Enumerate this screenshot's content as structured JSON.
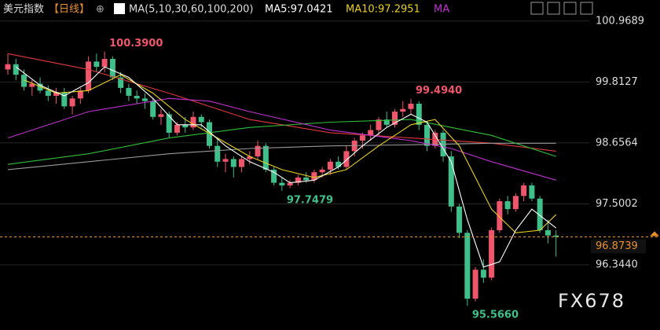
{
  "chart_data": {
    "type": "candlestick",
    "title": "美元指数",
    "period": "【日线】",
    "ma_label": "MA(5,10,30,60,100,200)",
    "ma5_label": "MA5:97.0421",
    "ma10_label": "MA10:97.2951",
    "ma_more": "MA",
    "watermark": "FX678",
    "up_color": "#f0566b",
    "down_color": "#3fbf8a",
    "ylim": [
      95.33,
      101.1
    ],
    "yticks": [
      {
        "value": 100.9689,
        "label": "100.9689"
      },
      {
        "value": 99.8127,
        "label": "99.8127"
      },
      {
        "value": 98.6564,
        "label": "98.6564"
      },
      {
        "value": 97.5002,
        "label": "97.5002"
      },
      {
        "value": 96.344,
        "label": "96.3440"
      }
    ],
    "grid": true,
    "last_price": {
      "value": 96.8739,
      "label": "96.8739"
    },
    "annotations": [
      {
        "value": 100.39,
        "label": "100.3900",
        "kind": "high",
        "color": "#f0566b"
      },
      {
        "value": 99.494,
        "label": "99.4940",
        "kind": "high",
        "color": "#f0566b"
      },
      {
        "value": 97.7479,
        "label": "97.7479",
        "kind": "low",
        "color": "#3fbf8a"
      },
      {
        "value": 95.566,
        "label": "95.5660",
        "kind": "low",
        "color": "#3fbf8a"
      }
    ],
    "open": [
      100.05,
      100.15,
      99.95,
      99.72,
      99.78,
      99.65,
      99.55,
      99.62,
      99.35,
      99.5,
      99.65,
      100.2,
      100.1,
      100.25,
      99.9,
      99.7,
      99.55,
      99.5,
      99.45,
      99.15,
      99.2,
      98.85,
      99.0,
      98.95,
      99.15,
      99.05,
      98.6,
      98.3,
      98.35,
      98.2,
      98.35,
      98.4,
      98.6,
      98.15,
      97.9,
      97.85,
      97.9,
      98.0,
      97.95,
      98.1,
      98.15,
      98.3,
      98.2,
      98.5,
      98.7,
      98.8,
      98.9,
      99.1,
      99.0,
      99.25,
      99.3,
      99.4,
      99.0,
      98.6,
      98.85,
      98.4,
      97.45,
      96.95,
      95.7,
      96.25,
      96.1,
      97.0,
      97.55,
      97.4,
      97.65,
      97.85,
      97.6,
      97.0,
      96.9
    ],
    "high": [
      100.35,
      100.25,
      100.05,
      99.85,
      99.9,
      99.75,
      99.7,
      99.7,
      99.55,
      99.7,
      100.3,
      100.35,
      100.39,
      100.3,
      100.0,
      99.78,
      99.65,
      99.6,
      99.5,
      99.3,
      99.25,
      99.05,
      99.15,
      99.25,
      99.2,
      99.1,
      98.75,
      98.45,
      98.4,
      98.4,
      98.5,
      98.7,
      98.65,
      98.2,
      98.0,
      97.95,
      98.05,
      98.1,
      98.15,
      98.2,
      98.35,
      98.4,
      98.6,
      98.75,
      98.85,
      99.0,
      99.15,
      99.25,
      99.3,
      99.45,
      99.494,
      99.45,
      99.05,
      98.9,
      98.9,
      98.5,
      97.5,
      97.0,
      96.3,
      96.45,
      97.05,
      97.6,
      97.65,
      97.7,
      97.9,
      97.9,
      97.65,
      97.2,
      97.0
    ],
    "low": [
      99.95,
      99.85,
      99.65,
      99.55,
      99.6,
      99.45,
      99.4,
      99.3,
      99.2,
      99.4,
      99.6,
      100.0,
      100.0,
      99.85,
      99.6,
      99.45,
      99.4,
      99.3,
      99.1,
      99.0,
      98.75,
      98.8,
      98.85,
      98.9,
      98.95,
      98.55,
      98.2,
      98.1,
      98.0,
      98.1,
      98.25,
      98.35,
      98.1,
      97.85,
      97.7479,
      97.8,
      97.85,
      97.9,
      97.9,
      98.0,
      98.05,
      98.15,
      98.15,
      98.4,
      98.55,
      98.7,
      98.8,
      98.95,
      98.95,
      99.15,
      99.2,
      98.9,
      98.5,
      98.55,
      98.3,
      97.35,
      96.85,
      95.566,
      95.65,
      96.0,
      96.05,
      96.95,
      97.3,
      97.35,
      97.55,
      97.55,
      96.95,
      96.75,
      96.5
    ],
    "close": [
      100.15,
      99.95,
      99.72,
      99.78,
      99.65,
      99.55,
      99.62,
      99.35,
      99.5,
      99.65,
      100.2,
      100.1,
      100.25,
      99.9,
      99.7,
      99.55,
      99.5,
      99.45,
      99.15,
      99.2,
      98.85,
      99.0,
      98.95,
      99.15,
      99.05,
      98.6,
      98.3,
      98.35,
      98.2,
      98.35,
      98.4,
      98.6,
      98.15,
      97.9,
      97.85,
      97.9,
      98.0,
      97.95,
      98.1,
      98.15,
      98.3,
      98.2,
      98.5,
      98.7,
      98.8,
      98.9,
      99.1,
      99.0,
      99.25,
      99.3,
      99.4,
      99.0,
      98.6,
      98.85,
      98.4,
      97.45,
      96.95,
      95.7,
      96.25,
      96.1,
      97.0,
      97.55,
      97.4,
      97.65,
      97.85,
      97.6,
      97.0,
      96.9,
      96.8739
    ],
    "series": [
      {
        "name": "MA200",
        "color": "#e0393e",
        "x": [
          0,
          10,
          20,
          30,
          40,
          50,
          60,
          68
        ],
        "values": [
          100.35,
          100.05,
          99.6,
          99.1,
          98.85,
          98.75,
          98.65,
          98.5
        ]
      },
      {
        "name": "MA100",
        "color": "#9a9a9a",
        "x": [
          0,
          10,
          20,
          30,
          40,
          50,
          60,
          68
        ],
        "values": [
          98.15,
          98.3,
          98.45,
          98.55,
          98.6,
          98.62,
          98.65,
          98.65
        ]
      },
      {
        "name": "MA60",
        "color": "#2fbf3a",
        "x": [
          0,
          10,
          20,
          30,
          40,
          50,
          60,
          68
        ],
        "values": [
          98.25,
          98.45,
          98.75,
          98.95,
          99.05,
          99.1,
          98.8,
          98.4
        ]
      },
      {
        "name": "MA30",
        "color": "#c030d0",
        "x": [
          0,
          10,
          20,
          25,
          30,
          40,
          50,
          55,
          60,
          68
        ],
        "values": [
          98.75,
          99.25,
          99.5,
          99.45,
          99.25,
          98.9,
          98.7,
          98.55,
          98.3,
          97.95
        ]
      },
      {
        "name": "MA10",
        "color": "#e8d020",
        "x": [
          2,
          6,
          10,
          14,
          18,
          22,
          26,
          30,
          34,
          38,
          42,
          46,
          50,
          53,
          56,
          60,
          63,
          66,
          68
        ],
        "values": [
          99.85,
          99.6,
          99.65,
          99.95,
          99.6,
          99.1,
          98.75,
          98.4,
          98.15,
          98.0,
          98.15,
          98.6,
          99.0,
          99.1,
          98.6,
          97.4,
          96.95,
          97.0,
          97.2951
        ]
      },
      {
        "name": "MA5",
        "color": "#ffffff",
        "x": [
          1,
          4,
          7,
          10,
          12,
          15,
          18,
          21,
          24,
          27,
          30,
          33,
          35,
          38,
          41,
          44,
          47,
          50,
          52,
          55,
          57,
          59,
          61,
          63,
          65,
          68
        ],
        "values": [
          100.1,
          99.75,
          99.55,
          99.8,
          100.1,
          99.9,
          99.5,
          99.0,
          99.0,
          98.6,
          98.3,
          98.1,
          97.9,
          97.95,
          98.2,
          98.6,
          98.95,
          99.2,
          99.05,
          98.3,
          97.2,
          96.3,
          96.4,
          97.0,
          97.4,
          97.0421
        ]
      }
    ]
  }
}
